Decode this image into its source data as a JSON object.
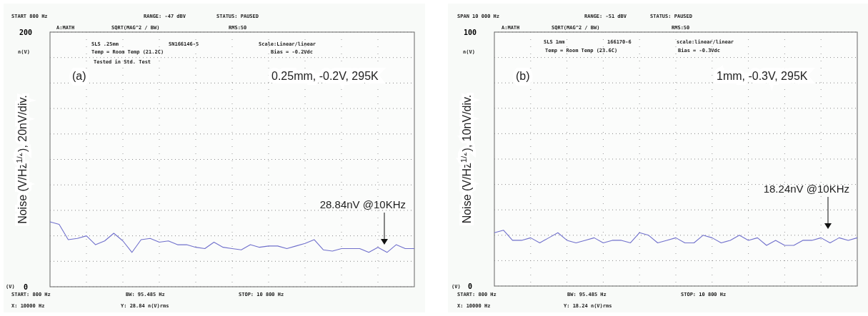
{
  "chart_data": [
    {
      "type": "line",
      "ylabel": "Noise (V/Hz$^{1/2}$), 20nV/div.",
      "ylim": [
        0,
        200
      ],
      "yticks": [
        0,
        {
          "value": 20,
          "label": null
        },
        {
          "value": 40,
          "label": null
        },
        {
          "value": 60,
          "label": null
        },
        {
          "value": 80,
          "label": null
        },
        {
          "value": 100,
          "label": null
        },
        {
          "value": 120,
          "label": null
        },
        {
          "value": 140,
          "label": null
        },
        {
          "value": 160,
          "label": null
        },
        {
          "value": 180,
          "label": null
        },
        200
      ],
      "tick_labels": "y",
      "grid": true,
      "line_style": "solid",
      "marker": "none",
      "categories": [
        null,
        null,
        null,
        null,
        null,
        null,
        null,
        null,
        null,
        null,
        null,
        null,
        null,
        null,
        null,
        null,
        null,
        null,
        null,
        null,
        null,
        null,
        null,
        null,
        null,
        null,
        null,
        null,
        null,
        null,
        null,
        null,
        null,
        null,
        null,
        null,
        null,
        null,
        null,
        null,
        null
      ],
      "series": [
        {
          "color": "#7070cc",
          "values": [
            51,
            49,
            37,
            38,
            40,
            33,
            36,
            42,
            36,
            27,
            37,
            38,
            35,
            36,
            33,
            33,
            31,
            30,
            35,
            31,
            30,
            29,
            33,
            31,
            32,
            32,
            30,
            32,
            34,
            37,
            29,
            28,
            30,
            30,
            30,
            27,
            31,
            27,
            33,
            30,
            30
          ]
        }
      ],
      "annotations": [
        "START 800 Hz",
        "RANGE: -47 dBV",
        "STATUS: PAUSED",
        "A:MATH",
        "SQRT(MAG^2 / BW)",
        "RMS:50",
        "SLS .25mm",
        "SN166146-5",
        "Scale:Linear/linear",
        "Temp = Room Temp (21.2C)",
        "Bias = -0.2Vdc",
        "Tested in Std. Test",
        "(a)",
        "0.25mm, -0.2V, 295K",
        "n(V)",
        "(V)",
        "START: 800 Hz",
        "BW: 95.485 Hz",
        "STOP: 10 800 Hz",
        "X: 10000 Hz",
        "Y: 28.84 n(V)rms",
        "28.84nV @10KHz"
      ]
    },
    {
      "type": "line",
      "ylabel": "Noise (V/Hz$^{1/2}$), 10nV/div.",
      "ylim": [
        0,
        100
      ],
      "yticks": [
        0,
        {
          "value": 10,
          "label": null
        },
        {
          "value": 20,
          "label": null
        },
        {
          "value": 30,
          "label": null
        },
        {
          "value": 40,
          "label": null
        },
        {
          "value": 50,
          "label": null
        },
        {
          "value": 60,
          "label": null
        },
        {
          "value": 70,
          "label": null
        },
        {
          "value": 80,
          "label": null
        },
        {
          "value": 90,
          "label": null
        },
        100
      ],
      "tick_labels": "y",
      "grid": true,
      "line_style": "solid",
      "marker": "none",
      "categories": [
        null,
        null,
        null,
        null,
        null,
        null,
        null,
        null,
        null,
        null,
        null,
        null,
        null,
        null,
        null,
        null,
        null,
        null,
        null,
        null,
        null,
        null,
        null,
        null,
        null,
        null,
        null,
        null,
        null,
        null,
        null,
        null,
        null,
        null,
        null,
        null,
        null,
        null,
        null,
        null,
        null
      ],
      "series": [
        {
          "color": "#7070cc",
          "values": [
            21,
            22,
            18,
            18,
            19,
            17,
            19,
            21,
            18,
            17,
            18,
            19,
            17,
            18,
            18,
            17,
            21,
            20,
            17,
            18,
            19,
            17,
            17,
            20,
            19,
            17,
            18,
            20,
            18,
            19,
            16,
            18,
            16,
            16,
            18,
            18,
            19,
            17,
            19,
            18,
            19
          ]
        }
      ],
      "annotations": [
        "SPAN 10 000 Hz",
        "RANGE: -51 dBV",
        "STATUS: PAUSED",
        "A:MATH",
        "SQRT(MAG^2 / BW)",
        "RMS:50",
        "SLS 1mm",
        "166170-6",
        "scale:linear/linear",
        "Temp = Room Temp (23.6C)",
        "Bias = -0.3Vdc",
        "(b)",
        "1mm, -0.3V, 295K",
        "n(V)",
        "(V)",
        "START: 800 Hz",
        "BW: 95.485 Hz",
        "STOP: 10 800 Hz",
        "X: 10000 Hz",
        "Y: 18.24 n(V)rms",
        "18.24nV @10KHz"
      ]
    }
  ]
}
